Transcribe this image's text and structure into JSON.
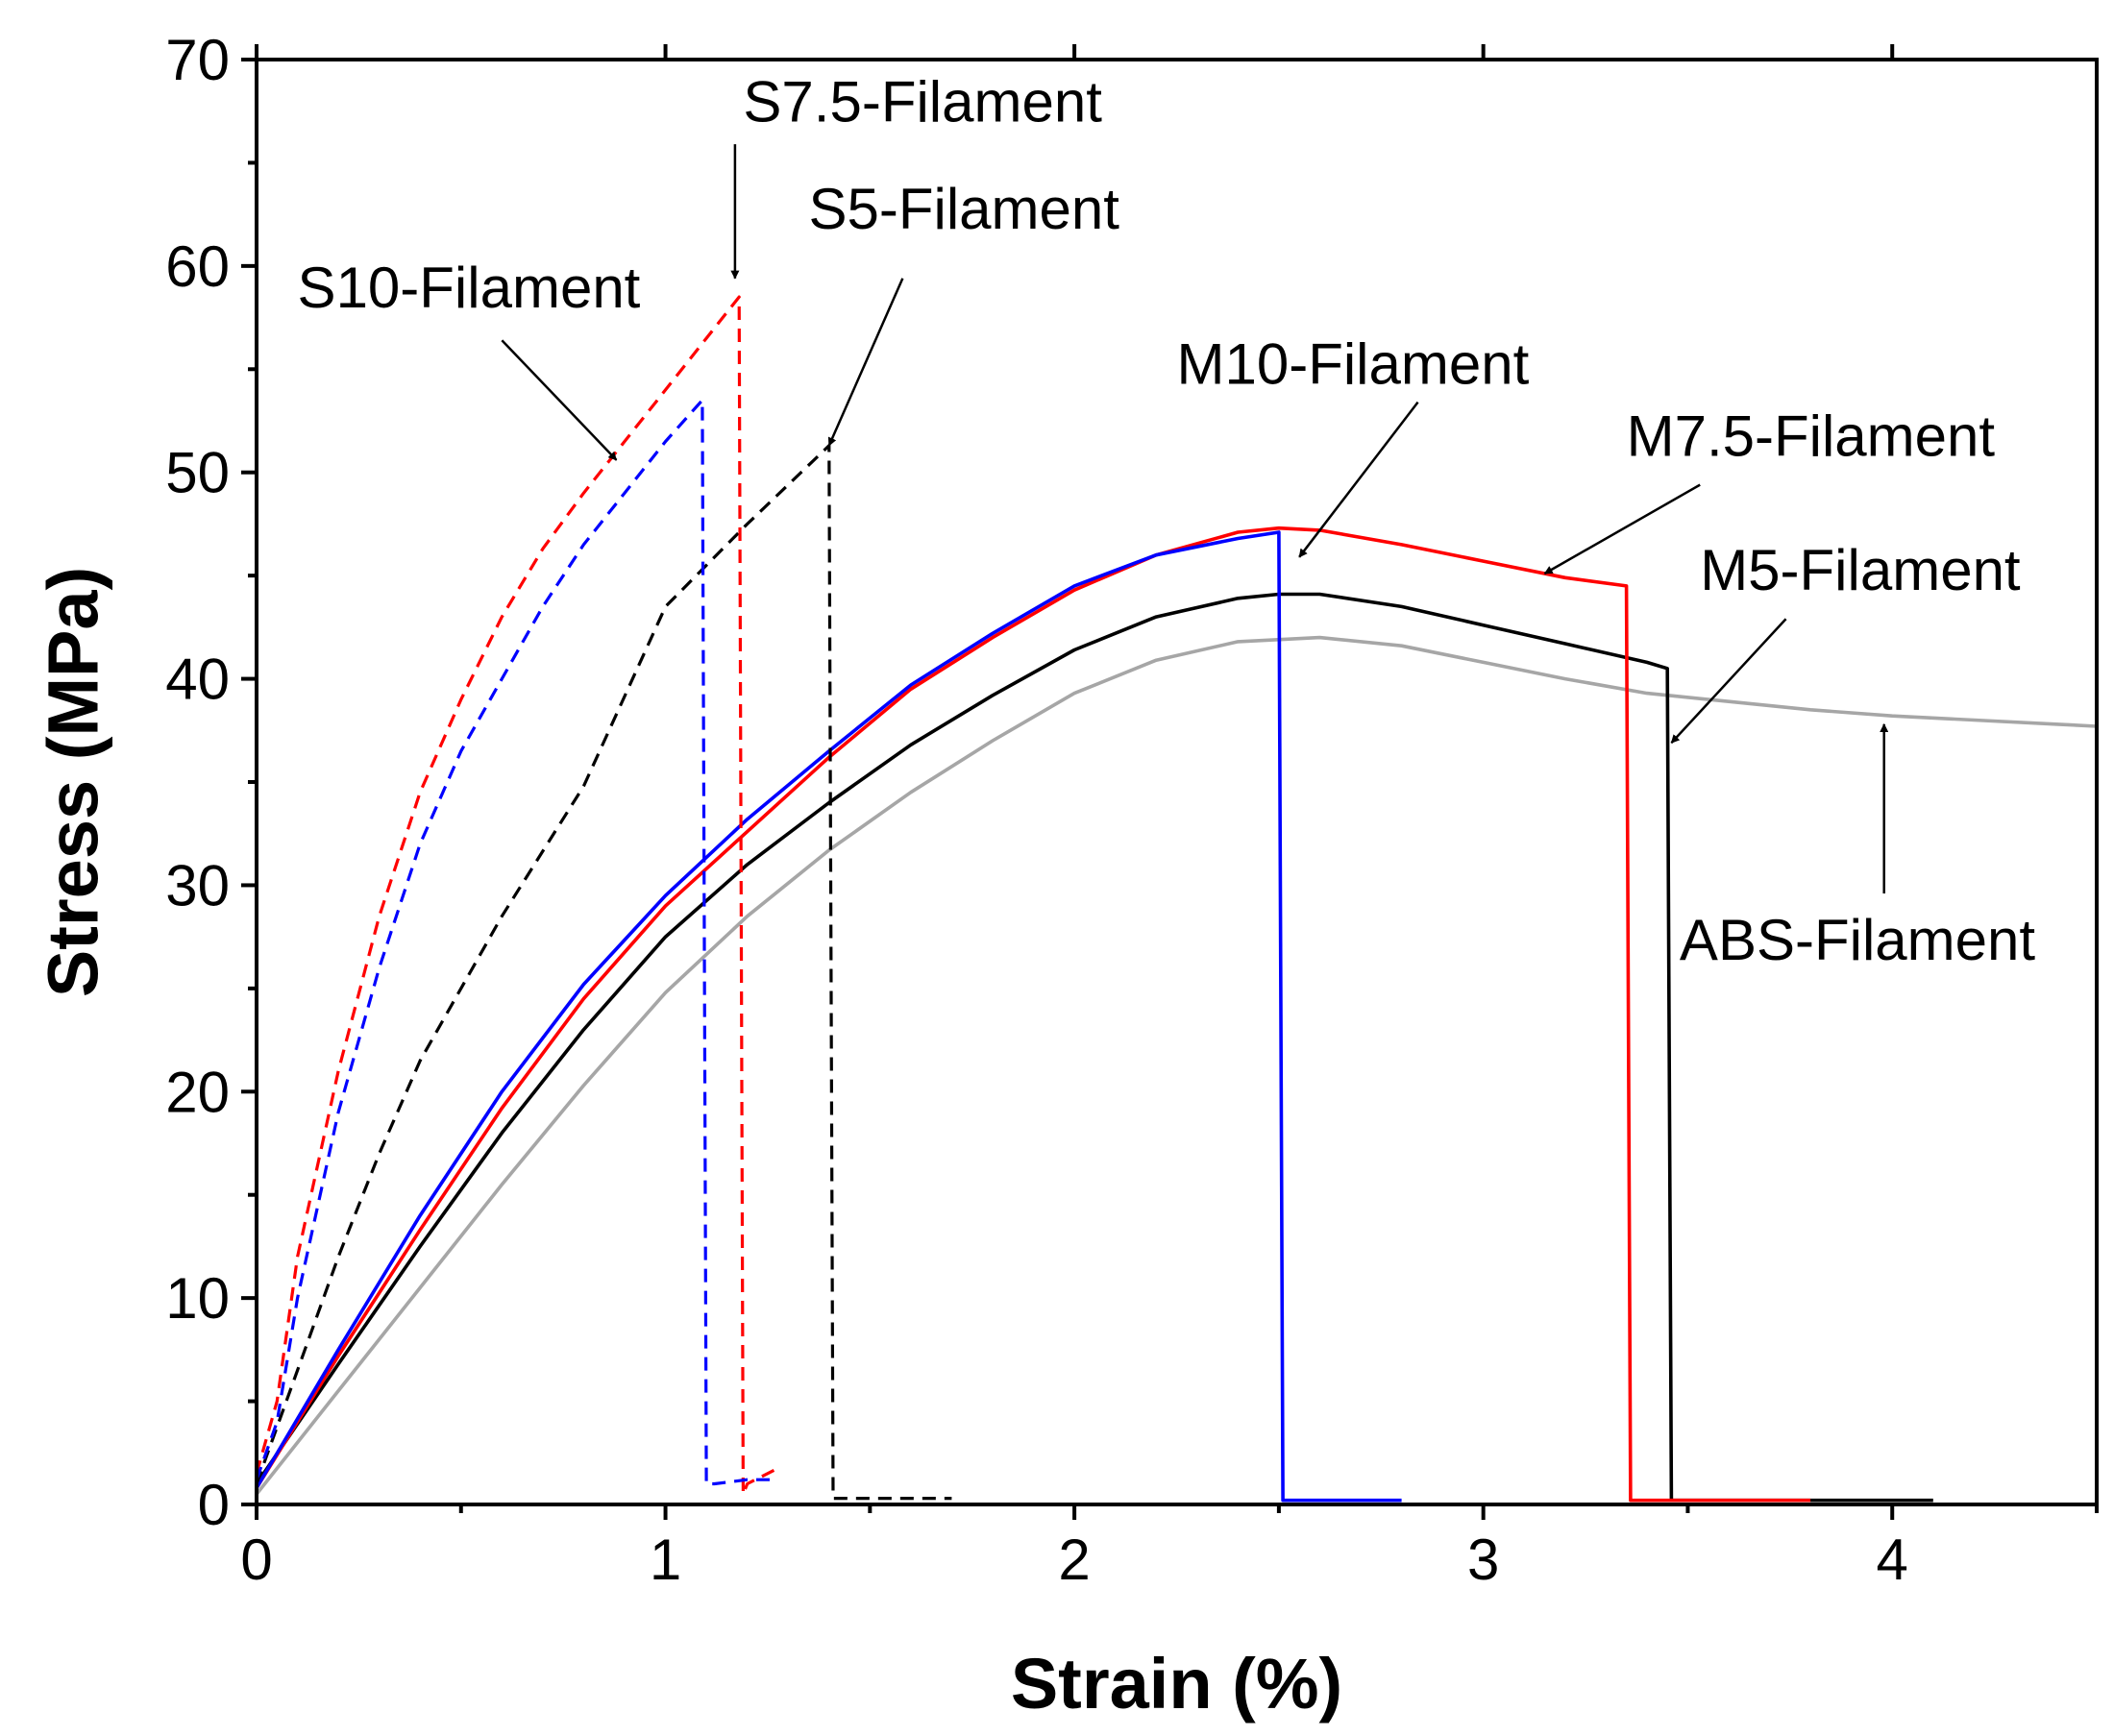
{
  "chart_data": {
    "type": "line",
    "title": "",
    "xlabel": "Strain (%)",
    "ylabel": "Stress (MPa)",
    "xlim": [
      0,
      4.5
    ],
    "ylim": [
      0,
      70
    ],
    "xticks": [
      0,
      1,
      2,
      3,
      4
    ],
    "xticks_minor": [
      0.5,
      1.5,
      2.5,
      3.5,
      4.5
    ],
    "yticks": [
      0,
      10,
      20,
      30,
      40,
      50,
      60,
      70
    ],
    "yticks_minor": [
      5,
      15,
      25,
      35,
      45,
      55,
      65
    ],
    "grid": false,
    "legend": "none",
    "series": [
      {
        "name": "ABS-Filament",
        "color": "#a6a6a6",
        "dash": "solid",
        "x": [
          0,
          0.2,
          0.4,
          0.6,
          0.8,
          1.0,
          1.2,
          1.4,
          1.6,
          1.8,
          2.0,
          2.2,
          2.4,
          2.6,
          2.8,
          3.0,
          3.2,
          3.4,
          3.6,
          3.8,
          4.0,
          4.2,
          4.4,
          4.5
        ],
        "y": [
          0.5,
          5.5,
          10.5,
          15.5,
          20.3,
          24.8,
          28.5,
          31.7,
          34.5,
          37.0,
          39.3,
          40.9,
          41.8,
          42.0,
          41.6,
          40.8,
          40.0,
          39.3,
          38.9,
          38.5,
          38.2,
          38.0,
          37.8,
          37.7
        ]
      },
      {
        "name": "M5-Filament",
        "color": "#000000",
        "dash": "solid",
        "x": [
          0,
          0.2,
          0.4,
          0.6,
          0.8,
          1.0,
          1.2,
          1.4,
          1.6,
          1.8,
          2.0,
          2.2,
          2.4,
          2.5,
          2.6,
          2.8,
          3.0,
          3.2,
          3.4,
          3.45,
          3.46,
          3.5,
          3.8,
          4.1
        ],
        "y": [
          1.0,
          6.8,
          12.5,
          18.0,
          23.0,
          27.5,
          31.0,
          34.0,
          36.8,
          39.2,
          41.4,
          43.0,
          43.9,
          44.1,
          44.1,
          43.5,
          42.6,
          41.7,
          40.8,
          40.5,
          0.2,
          0.2,
          0.2,
          0.2
        ]
      },
      {
        "name": "M7.5-Filament",
        "color": "#ff0000",
        "dash": "solid",
        "x": [
          0,
          0.2,
          0.4,
          0.6,
          0.8,
          1.0,
          1.2,
          1.4,
          1.6,
          1.8,
          2.0,
          2.2,
          2.4,
          2.5,
          2.6,
          2.8,
          3.0,
          3.2,
          3.35,
          3.36,
          3.4,
          3.6,
          3.8
        ],
        "y": [
          0.8,
          7.2,
          13.3,
          19.2,
          24.5,
          29.0,
          32.6,
          36.2,
          39.5,
          42.0,
          44.3,
          46.0,
          47.1,
          47.3,
          47.2,
          46.5,
          45.7,
          44.9,
          44.5,
          0.2,
          0.2,
          0.2,
          0.2
        ]
      },
      {
        "name": "M10-Filament",
        "color": "#0000ff",
        "dash": "solid",
        "x": [
          0,
          0.2,
          0.4,
          0.6,
          0.8,
          1.0,
          1.2,
          1.4,
          1.6,
          1.8,
          2.0,
          2.2,
          2.4,
          2.5,
          2.51,
          2.6,
          2.8
        ],
        "y": [
          0.8,
          7.5,
          14.0,
          20.0,
          25.2,
          29.5,
          33.2,
          36.5,
          39.7,
          42.2,
          44.5,
          46.0,
          46.8,
          47.1,
          0.2,
          0.2,
          0.2
        ]
      },
      {
        "name": "S5-Filament",
        "color": "#000000",
        "dash": "dashed",
        "x": [
          0,
          0.1,
          0.2,
          0.3,
          0.4,
          0.6,
          0.8,
          1.0,
          1.2,
          1.4,
          1.41,
          1.5,
          1.7
        ],
        "y": [
          1.0,
          6.5,
          12.0,
          17.0,
          21.5,
          28.5,
          34.8,
          43.5,
          47.5,
          51.3,
          0.3,
          0.3,
          0.3
        ]
      },
      {
        "name": "S7.5-Filament",
        "color": "#ff0000",
        "dash": "dashed",
        "x": [
          0,
          0.05,
          0.1,
          0.2,
          0.3,
          0.4,
          0.5,
          0.6,
          0.7,
          0.8,
          0.9,
          1.0,
          1.1,
          1.18,
          1.19,
          1.2,
          1.28
        ],
        "y": [
          1.5,
          5.0,
          12.0,
          21.0,
          28.5,
          34.5,
          39.0,
          43.0,
          46.3,
          49.0,
          51.5,
          54.0,
          56.5,
          58.5,
          0.5,
          1.0,
          1.8
        ]
      },
      {
        "name": "S10-Filament",
        "color": "#0000ff",
        "dash": "dashed",
        "x": [
          0,
          0.05,
          0.1,
          0.2,
          0.3,
          0.4,
          0.5,
          0.6,
          0.7,
          0.8,
          0.9,
          1.0,
          1.09,
          1.1,
          1.12,
          1.2,
          1.27
        ],
        "y": [
          1.2,
          4.0,
          10.0,
          19.0,
          26.0,
          32.0,
          36.5,
          40.0,
          43.5,
          46.5,
          49.0,
          51.5,
          53.5,
          1.0,
          1.0,
          1.2,
          1.2
        ]
      }
    ],
    "annotations": [
      {
        "text": "S7.5-Filament",
        "label_at": [
          1.19,
          67.0
        ],
        "arrow_from": [
          1.17,
          65.9
        ],
        "arrow_to": [
          1.17,
          59.4
        ]
      },
      {
        "text": "S10-Filament",
        "label_at": [
          0.1,
          58.0
        ],
        "arrow_from": [
          0.6,
          56.4
        ],
        "arrow_to": [
          0.88,
          50.6
        ]
      },
      {
        "text": "S5-Filament",
        "label_at": [
          1.35,
          61.8
        ],
        "arrow_from": [
          1.58,
          59.4
        ],
        "arrow_to": [
          1.4,
          51.3
        ]
      },
      {
        "text": "M10-Filament",
        "label_at": [
          2.25,
          54.3
        ],
        "arrow_from": [
          2.84,
          53.4
        ],
        "arrow_to": [
          2.55,
          45.9
        ]
      },
      {
        "text": "M7.5-Filament",
        "label_at": [
          3.35,
          50.8
        ],
        "arrow_from": [
          3.53,
          49.4
        ],
        "arrow_to": [
          3.15,
          45.1
        ]
      },
      {
        "text": "M5-Filament",
        "label_at": [
          3.53,
          44.3
        ],
        "arrow_from": [
          3.74,
          42.9
        ],
        "arrow_to": [
          3.46,
          36.9
        ]
      },
      {
        "text": "ABS-Filament",
        "label_at": [
          3.48,
          26.4
        ],
        "arrow_from": [
          3.98,
          29.6
        ],
        "arrow_to": [
          3.98,
          37.8
        ]
      }
    ]
  }
}
